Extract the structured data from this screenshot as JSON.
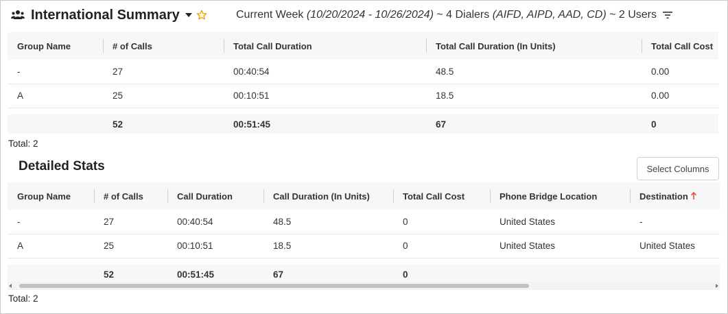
{
  "header": {
    "title": "International Summary",
    "subtitle_prefix": "Current Week ",
    "date_range": "(10/20/2024 - 10/26/2024)",
    "dialers_text": " ~ 4 Dialers ",
    "dialers_list": "(AIFD, AIPD, AAD, CD)",
    "users_text": " ~ 2 Users",
    "icons": [
      "users-icon",
      "caret-down-icon",
      "star-icon",
      "filter-icon"
    ]
  },
  "summary": {
    "columns": [
      "Group Name",
      "# of Calls",
      "Total Call Duration",
      "Total Call Duration (In Units)",
      "Total Call Cost"
    ],
    "rows": [
      [
        "-",
        "27",
        "00:40:54",
        "48.5",
        "0.00"
      ],
      [
        "A",
        "25",
        "00:10:51",
        "18.5",
        "0.00"
      ]
    ],
    "totals": [
      "",
      "52",
      "00:51:45",
      "67",
      "0"
    ],
    "total_label": "Total: 2"
  },
  "detail": {
    "title": "Detailed Stats",
    "select_columns_label": "Select Columns",
    "columns": [
      "Group Name",
      "# of Calls",
      "Call Duration",
      "Call Duration (In Units)",
      "Total Call Cost",
      "Phone Bridge Location",
      "Destination"
    ],
    "rows": [
      [
        "-",
        "27",
        "00:40:54",
        "48.5",
        "0",
        "United States",
        "-"
      ],
      [
        "A",
        "25",
        "00:10:51",
        "18.5",
        "0",
        "United States",
        "United States"
      ]
    ],
    "totals": [
      "",
      "52",
      "00:51:45",
      "67",
      "0",
      "",
      ""
    ],
    "total_label": "Total: 2",
    "sort_icon": "sort-ascending-icon",
    "scroll_fraction": 0.72
  },
  "colors": {
    "star": "#f0a500",
    "sort_arrow": "#e8532b",
    "header_bg": "#f6f7f9"
  }
}
